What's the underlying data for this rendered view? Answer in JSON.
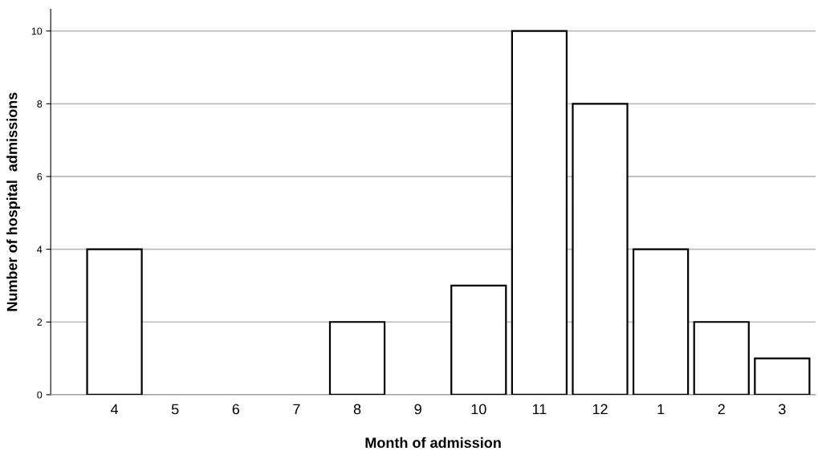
{
  "chart_data": {
    "type": "bar",
    "xlabel": "Month of admission",
    "ylabel": "Number of hospital  admissions",
    "categories": [
      "4",
      "5",
      "6",
      "7",
      "8",
      "9",
      "10",
      "11",
      "12",
      "1",
      "2",
      "3"
    ],
    "values": [
      4,
      0,
      0,
      0,
      2,
      0,
      3,
      10,
      8,
      4,
      2,
      1
    ],
    "color": "#ffffff",
    "ylim": [
      0,
      10.6
    ],
    "yticks": [
      0,
      2,
      4,
      6,
      8,
      10
    ],
    "grid": "y"
  }
}
